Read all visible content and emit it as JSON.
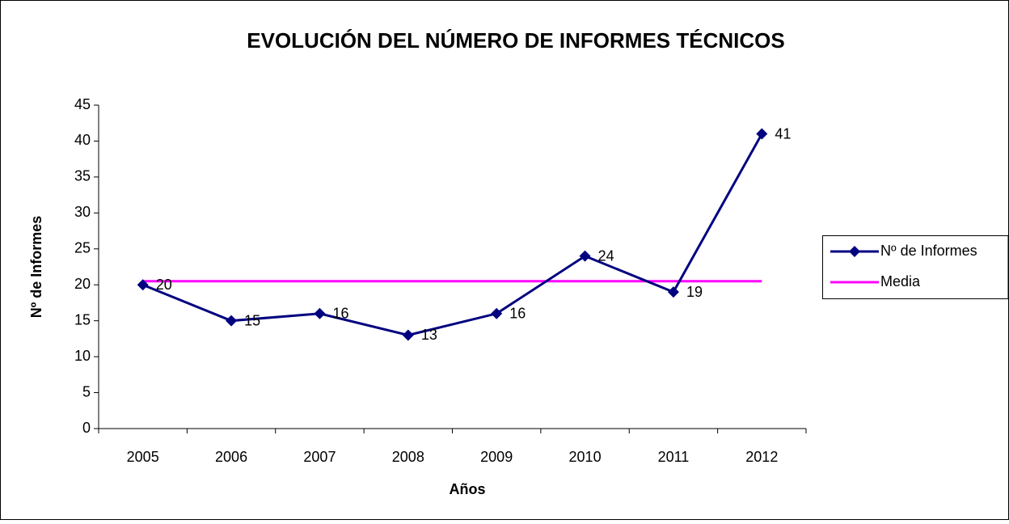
{
  "chart_data": {
    "type": "line",
    "title": "EVOLUCIÓN DEL NÚMERO DE INFORMES TÉCNICOS",
    "x_label": "Años",
    "y_label": "Nº de Informes",
    "categories": [
      "2005",
      "2006",
      "2007",
      "2008",
      "2009",
      "2010",
      "2011",
      "2012"
    ],
    "series": [
      {
        "name": "Nº de Informes",
        "color": "#000080",
        "marker": "diamond",
        "data_labels": true,
        "values": [
          20,
          15,
          16,
          13,
          16,
          24,
          19,
          41
        ]
      },
      {
        "name": "Media",
        "color": "#ff00ff",
        "marker": "none",
        "data_labels": false,
        "values": [
          20.5,
          20.5,
          20.5,
          20.5,
          20.5,
          20.5,
          20.5,
          20.5
        ]
      }
    ],
    "ylim": [
      0,
      45
    ],
    "yticks": [
      0,
      5,
      10,
      15,
      20,
      25,
      30,
      35,
      40,
      45
    ],
    "grid": false,
    "legend": "right"
  }
}
